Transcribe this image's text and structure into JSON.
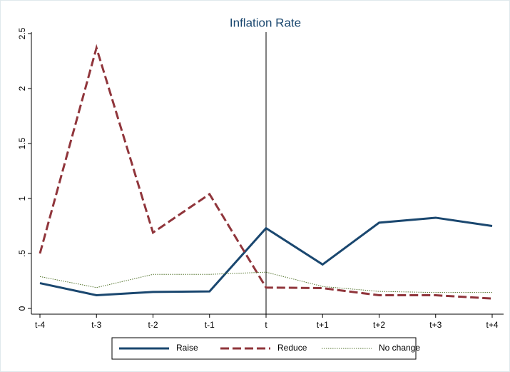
{
  "chart_data": {
    "type": "line",
    "title": "Inflation Rate",
    "categories": [
      "t-4",
      "t-3",
      "t-2",
      "t-1",
      "t",
      "t+1",
      "t+2",
      "t+3",
      "t+4"
    ],
    "series": [
      {
        "name": "Raise",
        "color": "#1a476f",
        "style": "solid",
        "values": [
          0.23,
          0.12,
          0.15,
          0.155,
          0.73,
          0.4,
          0.78,
          0.825,
          0.75
        ]
      },
      {
        "name": "Reduce",
        "color": "#90353b",
        "style": "dashed",
        "values": [
          0.5,
          2.37,
          0.69,
          1.04,
          0.19,
          0.185,
          0.12,
          0.12,
          0.09
        ]
      },
      {
        "name": "No change",
        "color": "#55752f",
        "style": "dotted",
        "values": [
          0.29,
          0.19,
          0.31,
          0.31,
          0.33,
          0.2,
          0.155,
          0.145,
          0.145
        ]
      }
    ],
    "xline": "t",
    "ylim": [
      0,
      2.5
    ],
    "yticks": [
      0,
      {
        "value": 0.5,
        "label": ".5"
      },
      1,
      1.5,
      2,
      2.5
    ],
    "legend": "bottom"
  }
}
